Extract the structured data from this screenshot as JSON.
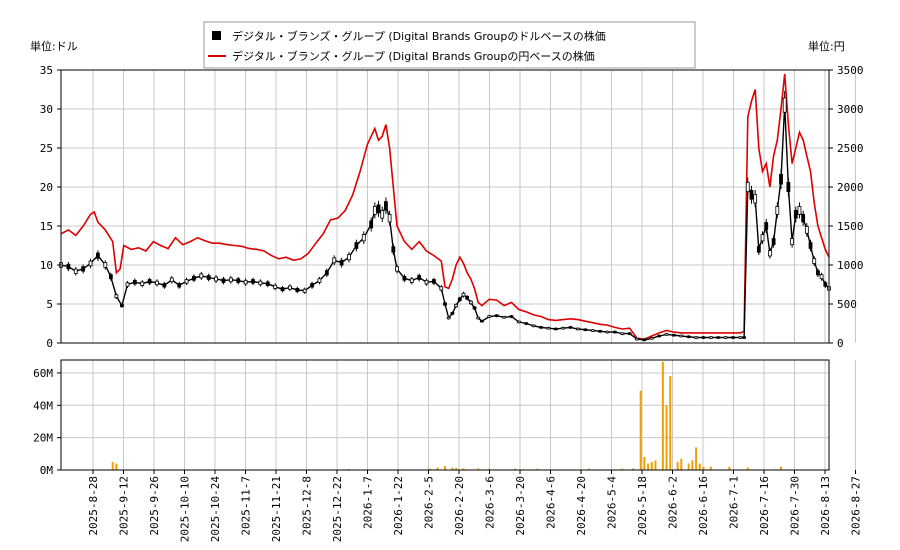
{
  "chart_data": [
    {
      "type": "candlestick+line",
      "legend": [
        {
          "label": "デジタル・ブランズ・グループ (Digital Brands Groupのドルベースの株価",
          "color": "#000000",
          "marker": "square"
        },
        {
          "label": "デジタル・ブランズ・グループ (Digital Brands Groupの円ベースの株価",
          "color": "#dd0000",
          "marker": "line"
        }
      ],
      "legend_position": "top-center",
      "left_unit": "単位:ドル",
      "right_unit": "単位:円",
      "y_left_ticks": [
        "0",
        "5",
        "10",
        "15",
        "20",
        "25",
        "30",
        "35"
      ],
      "y_right_ticks": [
        "0",
        "500",
        "1000",
        "1500",
        "2000",
        "2500",
        "3000",
        "3500"
      ],
      "ylim_left": [
        0,
        35
      ],
      "ylim_right": [
        0,
        3500
      ],
      "grid": true,
      "usd_series": {
        "name": "デジタル・ブランズ・グループ (Digital Brands Groupのドルベースの株価",
        "points": [
          [
            0,
            10
          ],
          [
            4,
            9.8
          ],
          [
            8,
            9.2
          ],
          [
            12,
            9.5
          ],
          [
            16,
            10.2
          ],
          [
            20,
            11.2
          ],
          [
            24,
            10
          ],
          [
            27,
            8.5
          ],
          [
            30,
            6
          ],
          [
            33,
            4.8
          ],
          [
            36,
            7.5
          ],
          [
            40,
            7.8
          ],
          [
            44,
            7.6
          ],
          [
            48,
            7.9
          ],
          [
            52,
            7.7
          ],
          [
            56,
            7.4
          ],
          [
            60,
            8.1
          ],
          [
            64,
            7.4
          ],
          [
            68,
            7.9
          ],
          [
            72,
            8.3
          ],
          [
            76,
            8.6
          ],
          [
            80,
            8.4
          ],
          [
            84,
            8.2
          ],
          [
            88,
            8.0
          ],
          [
            92,
            8.1
          ],
          [
            96,
            8.0
          ],
          [
            100,
            7.8
          ],
          [
            104,
            7.9
          ],
          [
            108,
            7.7
          ],
          [
            112,
            7.6
          ],
          [
            116,
            7.2
          ],
          [
            120,
            6.9
          ],
          [
            124,
            7.1
          ],
          [
            128,
            6.8
          ],
          [
            132,
            6.7
          ],
          [
            136,
            7.4
          ],
          [
            140,
            8.0
          ],
          [
            144,
            9.0
          ],
          [
            148,
            10.6
          ],
          [
            152,
            10.3
          ],
          [
            156,
            11
          ],
          [
            160,
            12.5
          ],
          [
            164,
            13.5
          ],
          [
            168,
            15.2
          ],
          [
            170,
            17
          ],
          [
            172,
            17.2
          ],
          [
            174,
            16.5
          ],
          [
            176,
            17.6
          ],
          [
            178,
            16
          ],
          [
            180,
            12
          ],
          [
            182,
            9.5
          ],
          [
            186,
            8.3
          ],
          [
            190,
            8.0
          ],
          [
            194,
            8.4
          ],
          [
            198,
            7.8
          ],
          [
            202,
            7.9
          ],
          [
            206,
            7.0
          ],
          [
            208,
            5.0
          ],
          [
            210,
            3.2
          ],
          [
            212,
            3.8
          ],
          [
            214,
            4.8
          ],
          [
            216,
            5.6
          ],
          [
            218,
            6.2
          ],
          [
            220,
            5.8
          ],
          [
            222,
            5.2
          ],
          [
            224,
            4.5
          ],
          [
            226,
            3.2
          ],
          [
            228,
            2.8
          ],
          [
            232,
            3.4
          ],
          [
            236,
            3.5
          ],
          [
            240,
            3.3
          ],
          [
            244,
            3.4
          ],
          [
            248,
            2.7
          ],
          [
            252,
            2.5
          ],
          [
            256,
            2.2
          ],
          [
            260,
            2.0
          ],
          [
            264,
            1.9
          ],
          [
            268,
            1.8
          ],
          [
            272,
            1.9
          ],
          [
            276,
            2.0
          ],
          [
            280,
            1.8
          ],
          [
            284,
            1.7
          ],
          [
            288,
            1.6
          ],
          [
            292,
            1.5
          ],
          [
            296,
            1.4
          ],
          [
            300,
            1.4
          ],
          [
            304,
            1.2
          ],
          [
            308,
            1.2
          ],
          [
            312,
            0.5
          ],
          [
            316,
            0.4
          ],
          [
            320,
            0.6
          ],
          [
            324,
            0.9
          ],
          [
            328,
            1.1
          ],
          [
            332,
            1.0
          ],
          [
            336,
            0.9
          ],
          [
            340,
            0.8
          ],
          [
            344,
            0.7
          ],
          [
            348,
            0.7
          ],
          [
            352,
            0.7
          ],
          [
            356,
            0.7
          ],
          [
            360,
            0.7
          ],
          [
            364,
            0.7
          ],
          [
            368,
            0.7
          ],
          [
            370,
            0.7
          ],
          [
            372,
            20
          ],
          [
            374,
            19
          ],
          [
            376,
            18.5
          ],
          [
            378,
            12
          ],
          [
            380,
            13.5
          ],
          [
            382,
            15
          ],
          [
            384,
            11.5
          ],
          [
            386,
            13
          ],
          [
            388,
            17
          ],
          [
            390,
            21
          ],
          [
            392,
            30.5
          ],
          [
            394,
            20
          ],
          [
            396,
            13
          ],
          [
            398,
            16.5
          ],
          [
            400,
            17
          ],
          [
            402,
            16
          ],
          [
            404,
            14.5
          ],
          [
            406,
            12.5
          ],
          [
            408,
            10.5
          ],
          [
            410,
            9
          ],
          [
            412,
            8.5
          ],
          [
            414,
            7.5
          ],
          [
            416,
            7.0
          ]
        ]
      },
      "jpy_series": {
        "name": "デジタル・ブランズ・グループ (Digital Brands Groupの円ベースの株価",
        "points": [
          [
            0,
            1400
          ],
          [
            4,
            1450
          ],
          [
            8,
            1380
          ],
          [
            12,
            1500
          ],
          [
            16,
            1650
          ],
          [
            18,
            1680
          ],
          [
            20,
            1550
          ],
          [
            24,
            1450
          ],
          [
            28,
            1300
          ],
          [
            30,
            900
          ],
          [
            32,
            950
          ],
          [
            34,
            1250
          ],
          [
            38,
            1200
          ],
          [
            42,
            1220
          ],
          [
            46,
            1180
          ],
          [
            50,
            1300
          ],
          [
            54,
            1250
          ],
          [
            58,
            1210
          ],
          [
            62,
            1350
          ],
          [
            66,
            1260
          ],
          [
            70,
            1300
          ],
          [
            74,
            1350
          ],
          [
            78,
            1310
          ],
          [
            82,
            1280
          ],
          [
            86,
            1280
          ],
          [
            90,
            1260
          ],
          [
            94,
            1250
          ],
          [
            98,
            1240
          ],
          [
            102,
            1210
          ],
          [
            106,
            1200
          ],
          [
            110,
            1180
          ],
          [
            114,
            1120
          ],
          [
            118,
            1080
          ],
          [
            122,
            1100
          ],
          [
            126,
            1060
          ],
          [
            130,
            1080
          ],
          [
            134,
            1150
          ],
          [
            138,
            1280
          ],
          [
            142,
            1400
          ],
          [
            146,
            1580
          ],
          [
            150,
            1600
          ],
          [
            154,
            1700
          ],
          [
            158,
            1900
          ],
          [
            162,
            2200
          ],
          [
            166,
            2550
          ],
          [
            170,
            2750
          ],
          [
            172,
            2600
          ],
          [
            174,
            2650
          ],
          [
            176,
            2800
          ],
          [
            178,
            2500
          ],
          [
            180,
            2000
          ],
          [
            182,
            1500
          ],
          [
            186,
            1300
          ],
          [
            190,
            1200
          ],
          [
            194,
            1300
          ],
          [
            198,
            1180
          ],
          [
            202,
            1120
          ],
          [
            206,
            1050
          ],
          [
            208,
            720
          ],
          [
            210,
            700
          ],
          [
            212,
            820
          ],
          [
            214,
            1000
          ],
          [
            216,
            1100
          ],
          [
            218,
            1020
          ],
          [
            220,
            900
          ],
          [
            222,
            820
          ],
          [
            224,
            700
          ],
          [
            226,
            520
          ],
          [
            228,
            480
          ],
          [
            232,
            560
          ],
          [
            236,
            550
          ],
          [
            240,
            480
          ],
          [
            244,
            520
          ],
          [
            248,
            430
          ],
          [
            252,
            400
          ],
          [
            256,
            360
          ],
          [
            260,
            340
          ],
          [
            264,
            300
          ],
          [
            268,
            290
          ],
          [
            272,
            300
          ],
          [
            276,
            310
          ],
          [
            280,
            300
          ],
          [
            284,
            280
          ],
          [
            288,
            260
          ],
          [
            292,
            240
          ],
          [
            296,
            230
          ],
          [
            300,
            200
          ],
          [
            304,
            180
          ],
          [
            308,
            190
          ],
          [
            312,
            60
          ],
          [
            316,
            50
          ],
          [
            320,
            90
          ],
          [
            324,
            130
          ],
          [
            328,
            160
          ],
          [
            332,
            140
          ],
          [
            336,
            130
          ],
          [
            340,
            130
          ],
          [
            344,
            130
          ],
          [
            348,
            130
          ],
          [
            352,
            130
          ],
          [
            356,
            130
          ],
          [
            360,
            130
          ],
          [
            364,
            130
          ],
          [
            368,
            130
          ],
          [
            370,
            150
          ],
          [
            372,
            2900
          ],
          [
            374,
            3100
          ],
          [
            376,
            3250
          ],
          [
            378,
            2500
          ],
          [
            380,
            2200
          ],
          [
            382,
            2300
          ],
          [
            384,
            2000
          ],
          [
            386,
            2400
          ],
          [
            388,
            2600
          ],
          [
            390,
            3000
          ],
          [
            392,
            3450
          ],
          [
            394,
            2800
          ],
          [
            396,
            2300
          ],
          [
            398,
            2500
          ],
          [
            400,
            2700
          ],
          [
            402,
            2600
          ],
          [
            404,
            2400
          ],
          [
            406,
            2200
          ],
          [
            408,
            1800
          ],
          [
            410,
            1500
          ],
          [
            412,
            1350
          ],
          [
            414,
            1200
          ],
          [
            416,
            1100
          ]
        ]
      }
    },
    {
      "type": "bar",
      "series_color": "#f0a000",
      "y_ticks": [
        "0M",
        "20M",
        "40M",
        "60M"
      ],
      "ylim": [
        0,
        68
      ],
      "volume": [
        [
          28,
          5
        ],
        [
          30,
          4
        ],
        [
          156,
          0.6
        ],
        [
          200,
          0.8
        ],
        [
          204,
          1.5
        ],
        [
          208,
          2.5
        ],
        [
          212,
          1.5
        ],
        [
          214,
          1.2
        ],
        [
          218,
          1.0
        ],
        [
          226,
          1.0
        ],
        [
          232,
          0.8
        ],
        [
          246,
          0.8
        ],
        [
          258,
          0.8
        ],
        [
          286,
          0.8
        ],
        [
          304,
          0.8
        ],
        [
          310,
          1.0
        ],
        [
          314,
          49
        ],
        [
          316,
          8
        ],
        [
          318,
          4
        ],
        [
          320,
          5
        ],
        [
          322,
          6
        ],
        [
          326,
          67
        ],
        [
          328,
          40
        ],
        [
          330,
          58
        ],
        [
          334,
          5
        ],
        [
          336,
          7
        ],
        [
          340,
          4
        ],
        [
          342,
          6
        ],
        [
          344,
          14
        ],
        [
          346,
          4
        ],
        [
          348,
          2
        ],
        [
          352,
          2
        ],
        [
          362,
          2
        ],
        [
          372,
          1.5
        ],
        [
          390,
          2
        ],
        [
          416,
          0.5
        ]
      ]
    }
  ],
  "x_labels": [
    "2025-8-28",
    "2025-9-12",
    "2025-9-26",
    "2025-10-10",
    "2025-10-24",
    "2025-11-7",
    "2025-11-21",
    "2025-12-8",
    "2025-12-22",
    "2026-1-7",
    "2026-1-22",
    "2026-2-5",
    "2026-2-20",
    "2026-3-6",
    "2026-3-20",
    "2026-4-6",
    "2026-4-20",
    "2026-5-4",
    "2026-5-18",
    "2026-6-2",
    "2026-6-16",
    "2026-7-1",
    "2026-7-16",
    "2026-7-30",
    "2026-8-13",
    "2026-8-27"
  ]
}
